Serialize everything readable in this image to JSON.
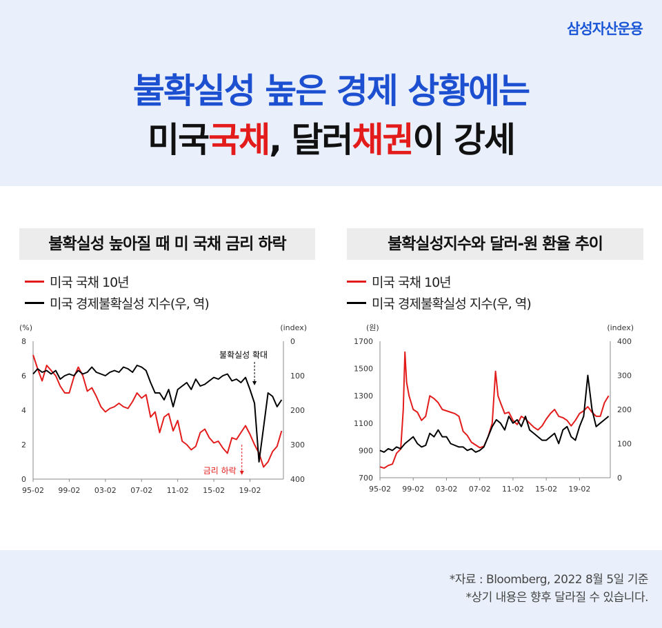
{
  "brand": "삼성자산운용",
  "title": {
    "line1": "불확실성 높은 경제 상황에는",
    "line2_parts": [
      "미국",
      "국채",
      ", 달러",
      "채권",
      "이 강세"
    ]
  },
  "panels": [
    {
      "title": "불확실성 높아질 때 미 국채 금리 하락"
    },
    {
      "title": "불확실성지수와 달러-원 환율 추이"
    }
  ],
  "legend": {
    "red_label": "미국 국채 10년",
    "black_label": "미국 경제불확실성 지수(우, 역)"
  },
  "colors": {
    "red": "#e31b1b",
    "black": "#000000",
    "blue": "#1d4fd1"
  },
  "chart_data": [
    {
      "type": "line",
      "left_axis_unit": "(%)",
      "right_axis_unit": "(index)",
      "left_ticks": [
        8,
        6,
        4,
        2,
        0
      ],
      "right_ticks": [
        0,
        100,
        200,
        300,
        400
      ],
      "ylim_left": [
        0,
        8
      ],
      "ylim_right_inverted": [
        0,
        400
      ],
      "x_ticks": [
        "95-02",
        "99-02",
        "03-02",
        "07-02",
        "11-02",
        "15-02",
        "19-02"
      ],
      "annotations": [
        {
          "text": "불확실성 확대",
          "x": 2019.5,
          "color": "#000000"
        },
        {
          "text": "금리 하락",
          "x": 2018.1,
          "color": "#e31b1b"
        }
      ],
      "series": [
        {
          "key": "red",
          "axis": "left",
          "color": "#e31b1b",
          "x": [
            1995.0,
            1995.5,
            1996.0,
            1996.5,
            1997.0,
            1997.5,
            1998.0,
            1998.5,
            1999.0,
            1999.5,
            2000.0,
            2000.5,
            2001.0,
            2001.5,
            2002.0,
            2002.5,
            2003.0,
            2003.5,
            2004.0,
            2004.5,
            2005.0,
            2005.5,
            2006.0,
            2006.5,
            2007.0,
            2007.5,
            2008.0,
            2008.5,
            2009.0,
            2009.5,
            2010.0,
            2010.5,
            2011.0,
            2011.5,
            2012.0,
            2012.5,
            2013.0,
            2013.5,
            2014.0,
            2014.5,
            2015.0,
            2015.5,
            2016.0,
            2016.5,
            2017.0,
            2017.5,
            2018.0,
            2018.5,
            2019.0,
            2019.5,
            2020.0,
            2020.5,
            2021.0,
            2021.5,
            2022.0,
            2022.5
          ],
          "values": [
            7.2,
            6.4,
            5.7,
            6.6,
            6.3,
            6.0,
            5.4,
            5.0,
            5.0,
            5.9,
            6.5,
            6.0,
            5.1,
            5.3,
            4.8,
            4.2,
            3.9,
            4.1,
            4.2,
            4.4,
            4.2,
            4.1,
            4.5,
            5.0,
            4.7,
            4.9,
            3.6,
            3.9,
            2.7,
            3.6,
            3.8,
            2.8,
            3.4,
            2.2,
            2.0,
            1.7,
            1.9,
            2.7,
            2.9,
            2.4,
            2.1,
            2.2,
            1.8,
            1.5,
            2.4,
            2.3,
            2.7,
            3.1,
            2.6,
            2.0,
            1.5,
            0.7,
            1.0,
            1.6,
            1.9,
            2.8
          ]
        },
        {
          "key": "black",
          "axis": "right_inverted",
          "color": "#000000",
          "x": [
            1995.0,
            1995.5,
            1996.0,
            1996.5,
            1997.0,
            1997.5,
            1998.0,
            1998.5,
            1999.0,
            1999.5,
            2000.0,
            2000.5,
            2001.0,
            2001.5,
            2002.0,
            2002.5,
            2003.0,
            2003.5,
            2004.0,
            2004.5,
            2005.0,
            2005.5,
            2006.0,
            2006.5,
            2007.0,
            2007.5,
            2008.0,
            2008.5,
            2009.0,
            2009.5,
            2010.0,
            2010.5,
            2011.0,
            2011.5,
            2012.0,
            2012.5,
            2013.0,
            2013.5,
            2014.0,
            2014.5,
            2015.0,
            2015.5,
            2016.0,
            2016.5,
            2017.0,
            2017.5,
            2018.0,
            2018.5,
            2019.0,
            2019.5,
            2020.0,
            2020.5,
            2021.0,
            2021.5,
            2022.0,
            2022.5
          ],
          "values": [
            95,
            80,
            90,
            85,
            95,
            85,
            110,
            100,
            95,
            100,
            85,
            95,
            90,
            75,
            90,
            95,
            100,
            90,
            85,
            90,
            75,
            80,
            90,
            70,
            75,
            85,
            120,
            150,
            150,
            170,
            140,
            190,
            140,
            130,
            120,
            140,
            110,
            130,
            125,
            115,
            105,
            110,
            100,
            95,
            115,
            110,
            120,
            105,
            140,
            180,
            350,
            250,
            150,
            160,
            190,
            170
          ]
        }
      ]
    },
    {
      "type": "line",
      "left_axis_unit": "(원)",
      "right_axis_unit": "(index)",
      "left_ticks": [
        1700,
        1500,
        1300,
        1100,
        900,
        700
      ],
      "right_ticks": [
        400,
        300,
        200,
        100,
        0
      ],
      "ylim_left": [
        700,
        1700
      ],
      "ylim_right": [
        0,
        400
      ],
      "x_ticks": [
        "95-02",
        "99-02",
        "03-02",
        "07-02",
        "11-02",
        "15-02",
        "19-02"
      ],
      "series": [
        {
          "key": "red",
          "axis": "left",
          "color": "#e31b1b",
          "x": [
            1995.0,
            1995.5,
            1996.0,
            1996.5,
            1997.0,
            1997.5,
            1997.8,
            1998.0,
            1998.2,
            1998.5,
            1999.0,
            1999.5,
            2000.0,
            2000.5,
            2001.0,
            2001.5,
            2002.0,
            2002.5,
            2003.0,
            2003.5,
            2004.0,
            2004.5,
            2005.0,
            2005.5,
            2006.0,
            2006.5,
            2007.0,
            2007.5,
            2008.0,
            2008.5,
            2008.9,
            2009.2,
            2009.5,
            2010.0,
            2010.5,
            2011.0,
            2011.5,
            2012.0,
            2012.5,
            2013.0,
            2013.5,
            2014.0,
            2014.5,
            2015.0,
            2015.5,
            2016.0,
            2016.5,
            2017.0,
            2017.5,
            2018.0,
            2018.5,
            2019.0,
            2019.5,
            2020.0,
            2020.5,
            2021.0,
            2021.5,
            2022.0,
            2022.5
          ],
          "values": [
            780,
            770,
            790,
            800,
            880,
            910,
            1200,
            1620,
            1400,
            1300,
            1200,
            1180,
            1120,
            1150,
            1300,
            1280,
            1250,
            1200,
            1190,
            1180,
            1170,
            1150,
            1040,
            1010,
            960,
            940,
            920,
            930,
            1000,
            1100,
            1480,
            1300,
            1250,
            1170,
            1180,
            1120,
            1090,
            1150,
            1130,
            1100,
            1070,
            1050,
            1080,
            1130,
            1170,
            1200,
            1150,
            1140,
            1120,
            1080,
            1120,
            1170,
            1190,
            1220,
            1180,
            1150,
            1150,
            1250,
            1300
          ]
        },
        {
          "key": "black",
          "axis": "right",
          "color": "#000000",
          "x": [
            1995.0,
            1995.5,
            1996.0,
            1996.5,
            1997.0,
            1997.5,
            1998.0,
            1998.5,
            1999.0,
            1999.5,
            2000.0,
            2000.5,
            2001.0,
            2001.5,
            2002.0,
            2002.5,
            2003.0,
            2003.5,
            2004.0,
            2004.5,
            2005.0,
            2005.5,
            2006.0,
            2006.5,
            2007.0,
            2007.5,
            2008.0,
            2008.5,
            2009.0,
            2009.5,
            2010.0,
            2010.5,
            2011.0,
            2011.5,
            2012.0,
            2012.5,
            2013.0,
            2013.5,
            2014.0,
            2014.5,
            2015.0,
            2015.5,
            2016.0,
            2016.5,
            2017.0,
            2017.5,
            2018.0,
            2018.5,
            2019.0,
            2019.5,
            2020.0,
            2020.5,
            2021.0,
            2021.5,
            2022.0,
            2022.5
          ],
          "values": [
            80,
            75,
            85,
            80,
            90,
            85,
            100,
            110,
            120,
            100,
            90,
            95,
            130,
            120,
            140,
            120,
            120,
            100,
            95,
            90,
            90,
            80,
            85,
            75,
            80,
            90,
            120,
            150,
            170,
            160,
            140,
            180,
            160,
            170,
            150,
            180,
            140,
            130,
            120,
            110,
            110,
            120,
            130,
            100,
            140,
            150,
            120,
            110,
            150,
            180,
            300,
            200,
            150,
            160,
            170,
            180
          ]
        }
      ]
    }
  ],
  "footer": {
    "source": "*자료 : Bloomberg, 2022 8월 5일 기준",
    "disclaimer": "*상기 내용은 향후 달라질 수 있습니다."
  }
}
